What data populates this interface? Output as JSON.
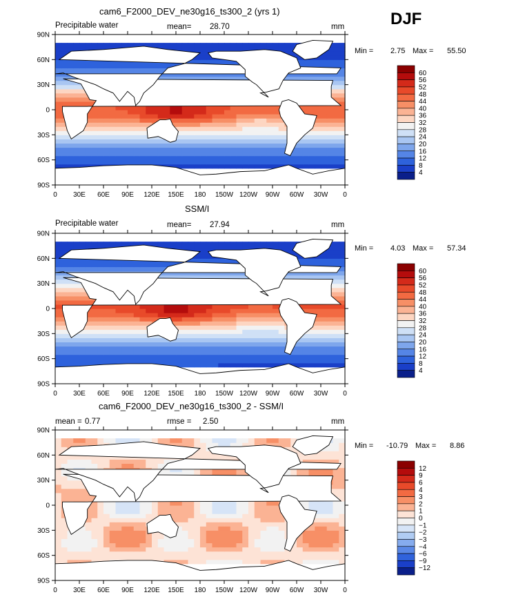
{
  "season": "DJF",
  "axes": {
    "lat_ticks": [
      "90N",
      "60N",
      "30N",
      "0",
      "30S",
      "60S",
      "90S"
    ],
    "lon_ticks": [
      "0",
      "30E",
      "60E",
      "90E",
      "120E",
      "150E",
      "180",
      "150W",
      "120W",
      "90W",
      "60W",
      "30W",
      "0"
    ],
    "xlim": [
      0,
      360
    ],
    "ylim": [
      -90,
      90
    ]
  },
  "chart_data": [
    {
      "type": "heatmap",
      "title": "cam6_F2000_DEV_ne30g16_ts300_2 (yrs 1)",
      "left_label": "Precipitable water",
      "stat1_label": "mean=",
      "stat1_value": "28.70",
      "stat2_label": "",
      "stat2_value": "",
      "units": "mm",
      "min_label": "Min =",
      "min_value": "2.75",
      "max_label": "Max =",
      "max_value": "55.50",
      "colorbar_levels": [
        "60",
        "56",
        "52",
        "48",
        "44",
        "40",
        "36",
        "32",
        "28",
        "24",
        "20",
        "16",
        "12",
        "8",
        "4"
      ],
      "colors": [
        "#8b0000",
        "#b40c0c",
        "#d42a1a",
        "#e84a2a",
        "#f26a42",
        "#f78f66",
        "#fbb394",
        "#fdd6c2",
        "#f2f2f2",
        "#cfe0f6",
        "#a9c6f2",
        "#7ea6ec",
        "#5585e6",
        "#2e62dc",
        "#1a3fc8",
        "#0a1f8a"
      ],
      "zonal_mean_lat": [
        -85,
        -75,
        -65,
        -55,
        -45,
        -35,
        -25,
        -15,
        -5,
        5,
        15,
        25,
        35,
        45,
        55,
        65,
        75,
        85
      ],
      "zonal_mean_value": [
        3,
        5,
        8,
        12,
        17,
        24,
        32,
        40,
        46,
        48,
        40,
        30,
        21,
        14,
        10,
        7,
        5,
        3
      ]
    },
    {
      "type": "heatmap",
      "title": "SSM/I",
      "left_label": "Precipitable water",
      "stat1_label": "mean=",
      "stat1_value": "27.94",
      "stat2_label": "",
      "stat2_value": "",
      "units": "mm",
      "min_label": "Min =",
      "min_value": "4.03",
      "max_label": "Max =",
      "max_value": "57.34",
      "colorbar_levels": [
        "60",
        "56",
        "52",
        "48",
        "44",
        "40",
        "36",
        "32",
        "28",
        "24",
        "20",
        "16",
        "12",
        "8",
        "4"
      ],
      "colors": [
        "#8b0000",
        "#b40c0c",
        "#d42a1a",
        "#e84a2a",
        "#f26a42",
        "#f78f66",
        "#fbb394",
        "#fdd6c2",
        "#f2f2f2",
        "#cfe0f6",
        "#a9c6f2",
        "#7ea6ec",
        "#5585e6",
        "#2e62dc",
        "#1a3fc8",
        "#0a1f8a"
      ],
      "zonal_mean_lat": [
        -75,
        -65,
        -55,
        -45,
        -35,
        -25,
        -15,
        -5,
        5,
        15,
        25,
        35,
        45,
        55,
        65,
        75
      ],
      "zonal_mean_value": [
        5,
        9,
        12,
        16,
        23,
        31,
        40,
        47,
        49,
        41,
        31,
        22,
        15,
        10,
        7,
        5
      ]
    },
    {
      "type": "heatmap",
      "title": "cam6_F2000_DEV_ne30g16_ts300_2 - SSM/I",
      "left_label": "",
      "stat1_label": "mean =",
      "stat1_value": "0.77",
      "stat2_label": "rmse =",
      "stat2_value": "2.50",
      "units": "mm",
      "min_label": "Min =",
      "min_value": "-10.79",
      "max_label": "Max =",
      "max_value": "8.86",
      "colorbar_levels": [
        "12",
        "9",
        "6",
        "4",
        "3",
        "2",
        "1",
        "0",
        "−1",
        "−2",
        "−3",
        "−4",
        "−6",
        "−9",
        "−12"
      ],
      "colors": [
        "#8b0000",
        "#b40c0c",
        "#d42a1a",
        "#e84a2a",
        "#f26a42",
        "#f78f66",
        "#fbb394",
        "#fde3d6",
        "#f2f2f2",
        "#d6e4f7",
        "#b0ccf3",
        "#86acee",
        "#5a88e6",
        "#3063dc",
        "#1a3fc8",
        "#0a1f8a"
      ],
      "zonal_mean_lat": [
        -75,
        -65,
        -55,
        -45,
        -35,
        -25,
        -15,
        -5,
        5,
        15,
        25,
        35,
        45,
        55,
        65,
        75
      ],
      "zonal_mean_value": [
        0.5,
        0.5,
        1,
        1.5,
        2,
        1.5,
        1,
        0,
        0.5,
        1.5,
        2,
        1.5,
        1,
        1,
        0.5,
        0.5
      ]
    }
  ]
}
